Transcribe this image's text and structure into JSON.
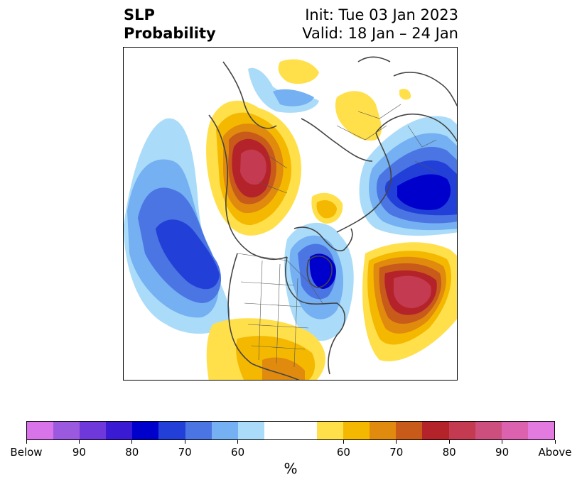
{
  "title": {
    "left_line1": "SLP",
    "left_line2": "Probability",
    "right_line1": "Init: Tue 03 Jan 2023",
    "right_line2": "Valid: 18 Jan – 24 Jan"
  },
  "colorbar": {
    "colors": [
      "#d873ea",
      "#9b59e0",
      "#6e38da",
      "#3b1ad4",
      "#0000cd",
      "#2240d8",
      "#4b75e3",
      "#74b0f2",
      "#aadcfa",
      "#ffffff",
      "#ffffff",
      "#ffe04a",
      "#f5b800",
      "#e08a0e",
      "#c85a1a",
      "#b5232a",
      "#c43a50",
      "#cc4f7e",
      "#dc62b0",
      "#e27ae0"
    ],
    "tick_labels": [
      "Below",
      "90",
      "80",
      "70",
      "60",
      "60",
      "70",
      "80",
      "90",
      "Above"
    ],
    "unit": "%"
  }
}
